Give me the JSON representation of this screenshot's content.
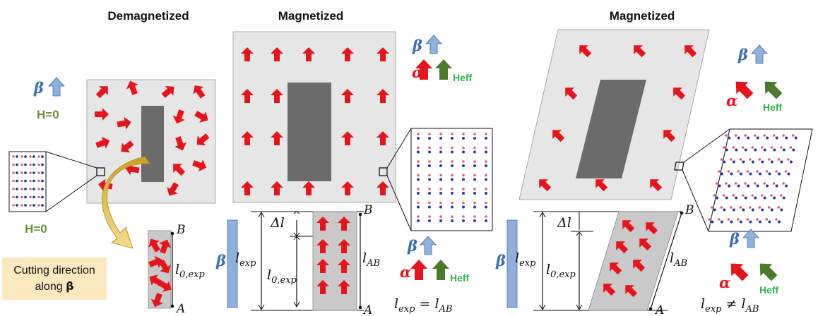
{
  "titles": {
    "demagnetized": "Demagnetized",
    "magnetized_1": "Magnetized",
    "magnetized_2": "Magnetized"
  },
  "field_labels": {
    "h_zero_top": "H=0",
    "h_zero_bottom": "H=0"
  },
  "symbols": {
    "beta": "β",
    "alpha": "α",
    "heff": "Heff",
    "delta_l": "Δl"
  },
  "cutting_note": {
    "line1": "Cutting direction",
    "line2_prefix": "along ",
    "line2_symbol": "β"
  },
  "points": {
    "a": "A",
    "b": "B"
  },
  "lengths": {
    "l": "l",
    "exp_sub": "exp",
    "zero_exp_sub": "0,exp",
    "ab_sub": "AB"
  },
  "equations": {
    "equal_op": " = ",
    "not_equal_op": " ≠ "
  },
  "colors": {
    "arrow_red": "#e8141c",
    "arrow_green": "#4a7a2a",
    "beta_arrow": "#8fb0dc",
    "beta_text": "#3a6fb0",
    "inclusion": "#6b6b6b",
    "sample": "#e6e6e6"
  }
}
